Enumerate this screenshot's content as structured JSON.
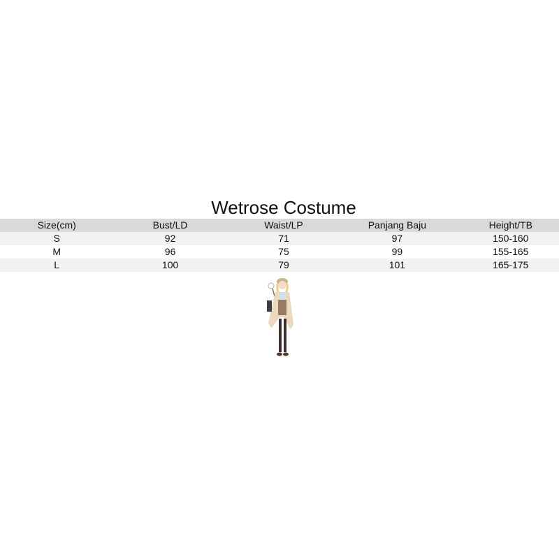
{
  "title": "Wetrose Costume",
  "table": {
    "headers": [
      "Size(cm)",
      "Bust/LD",
      "Waist/LP",
      "Panjang Baju",
      "Height/TB"
    ],
    "rows": [
      [
        "S",
        "92",
        "71",
        "97",
        "150-160"
      ],
      [
        "M",
        "96",
        "75",
        "99",
        "155-165"
      ],
      [
        "L",
        "100",
        "79",
        "101",
        "165-175"
      ]
    ]
  },
  "image": {
    "subject": "costume-character-illustration"
  }
}
